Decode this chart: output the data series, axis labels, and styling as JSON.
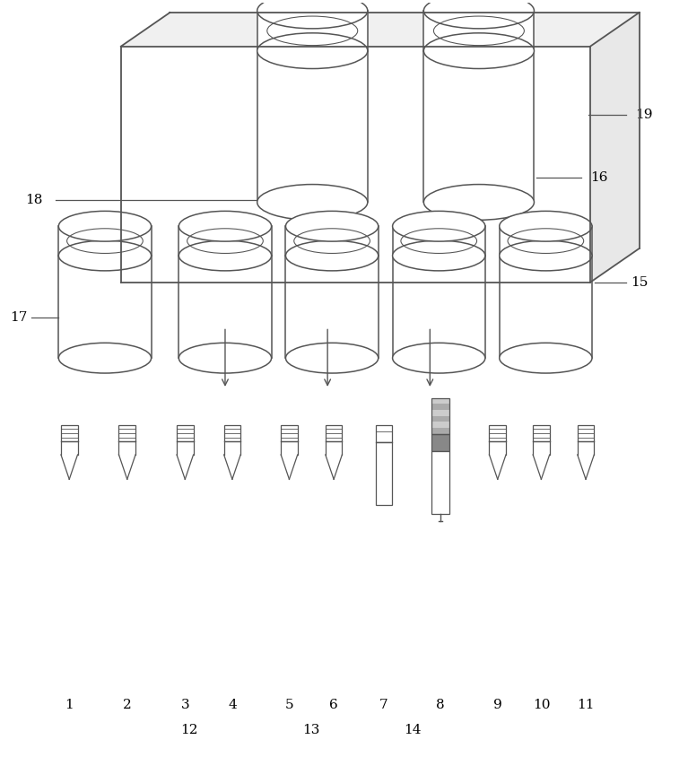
{
  "bg_color": "#ffffff",
  "line_color": "#555555",
  "line_width": 1.0,
  "figsize": [
    7.67,
    8.44
  ],
  "dpi": 100
}
